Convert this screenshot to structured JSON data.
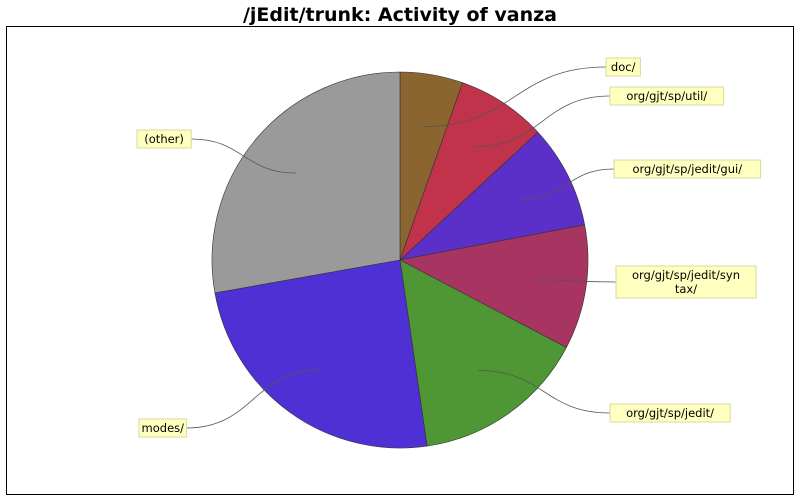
{
  "chart_data": {
    "type": "pie",
    "title": "/jEdit/trunk: Activity of vanza",
    "start_angle_deg": 90,
    "direction": "clockwise",
    "slices": [
      {
        "label": "doc/",
        "value": 5.4,
        "color": "#8b6530"
      },
      {
        "label": "org/gjt/sp/util/",
        "value": 7.7,
        "color": "#c0334a"
      },
      {
        "label": "org/gjt/sp/jedit/gui/",
        "value": 8.9,
        "color": "#5c30c8"
      },
      {
        "label": "org/gjt/sp/jedit/syntax/",
        "label_lines": [
          "org/gjt/sp/jedit/syn",
          "tax/"
        ],
        "value": 10.7,
        "color": "#a83462"
      },
      {
        "label": "org/gjt/sp/jedit/",
        "value": 15.0,
        "color": "#4f9634"
      },
      {
        "label": "modes/",
        "value": 24.5,
        "color": "#4e30d4"
      },
      {
        "label": "(other)",
        "value": 27.8,
        "color": "#9a9a9a"
      }
    ],
    "legend": "none",
    "labels": "callout boxes with leader lines"
  },
  "colors": {
    "background": "#ffffff",
    "frame": "#000000",
    "label_box": "#ffffc0",
    "slice_outline": "#333333"
  }
}
